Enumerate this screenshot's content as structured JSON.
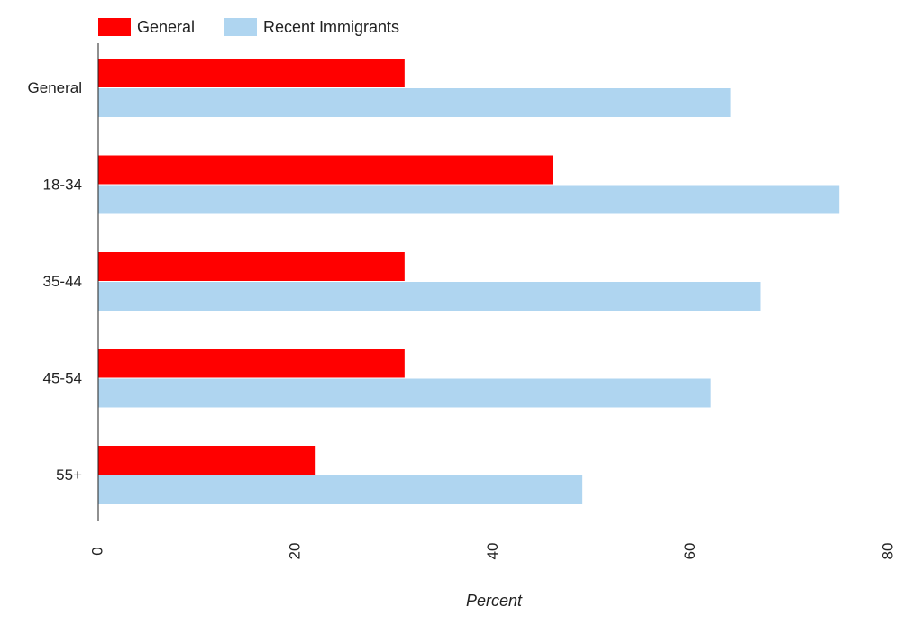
{
  "chart_data": {
    "type": "bar",
    "orientation": "horizontal",
    "categories": [
      "General",
      "18-34",
      "35-44",
      "45-54",
      "55+"
    ],
    "series": [
      {
        "name": "General",
        "values": [
          31,
          46,
          31,
          31,
          22
        ],
        "color": "#ff0000"
      },
      {
        "name": "Recent Immigrants",
        "values": [
          64,
          75,
          67,
          62,
          49
        ],
        "color": "#afd5f0"
      }
    ],
    "xlabel": "Percent",
    "ylabel": "",
    "xlim": [
      0,
      80
    ],
    "xticks": [
      "0",
      "20",
      "40",
      "60",
      "80"
    ],
    "grid": false,
    "legend_position": "top-left"
  }
}
